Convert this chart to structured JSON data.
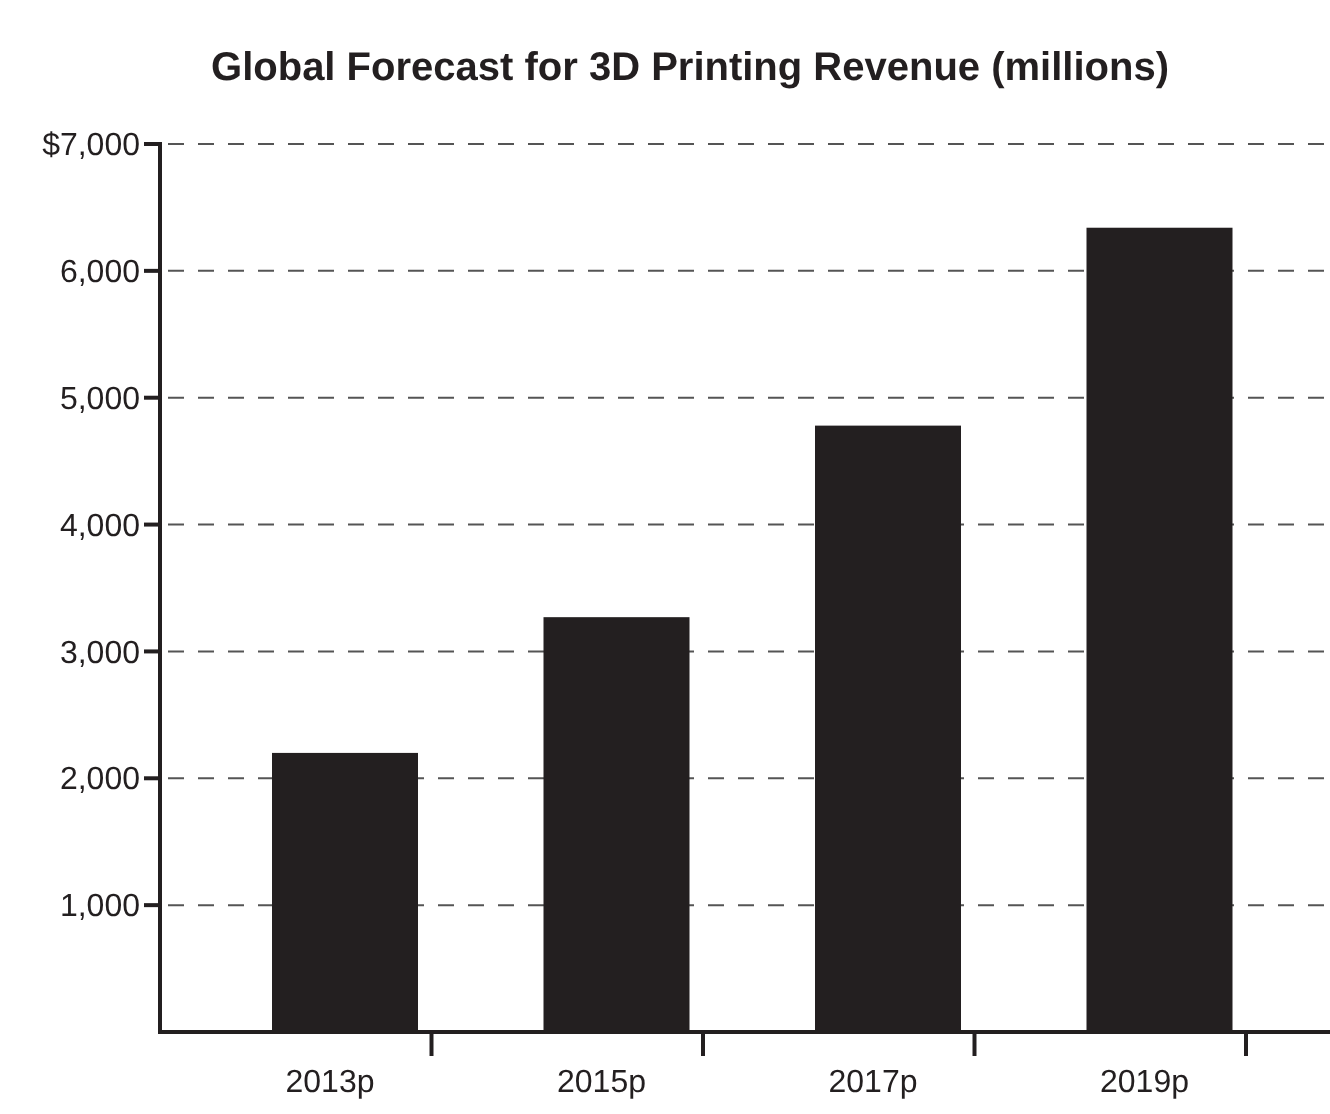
{
  "chart_data": {
    "type": "bar",
    "title": "Global Forecast for 3D Printing Revenue (millions)",
    "categories": [
      "2013p",
      "2015p",
      "2017p",
      "2019p"
    ],
    "values": [
      2200,
      3270,
      4780,
      6340
    ],
    "color": "#231f20",
    "ylim": [
      0,
      7000
    ],
    "yticks": [
      {
        "value": 1000,
        "label": "1,000"
      },
      {
        "value": 2000,
        "label": "2,000"
      },
      {
        "value": 3000,
        "label": "3,000"
      },
      {
        "value": 4000,
        "label": "4,000"
      },
      {
        "value": 5000,
        "label": "5,000"
      },
      {
        "value": 6000,
        "label": "6,000"
      },
      {
        "value": 7000,
        "label": "$7,000"
      }
    ],
    "grid": "y"
  }
}
